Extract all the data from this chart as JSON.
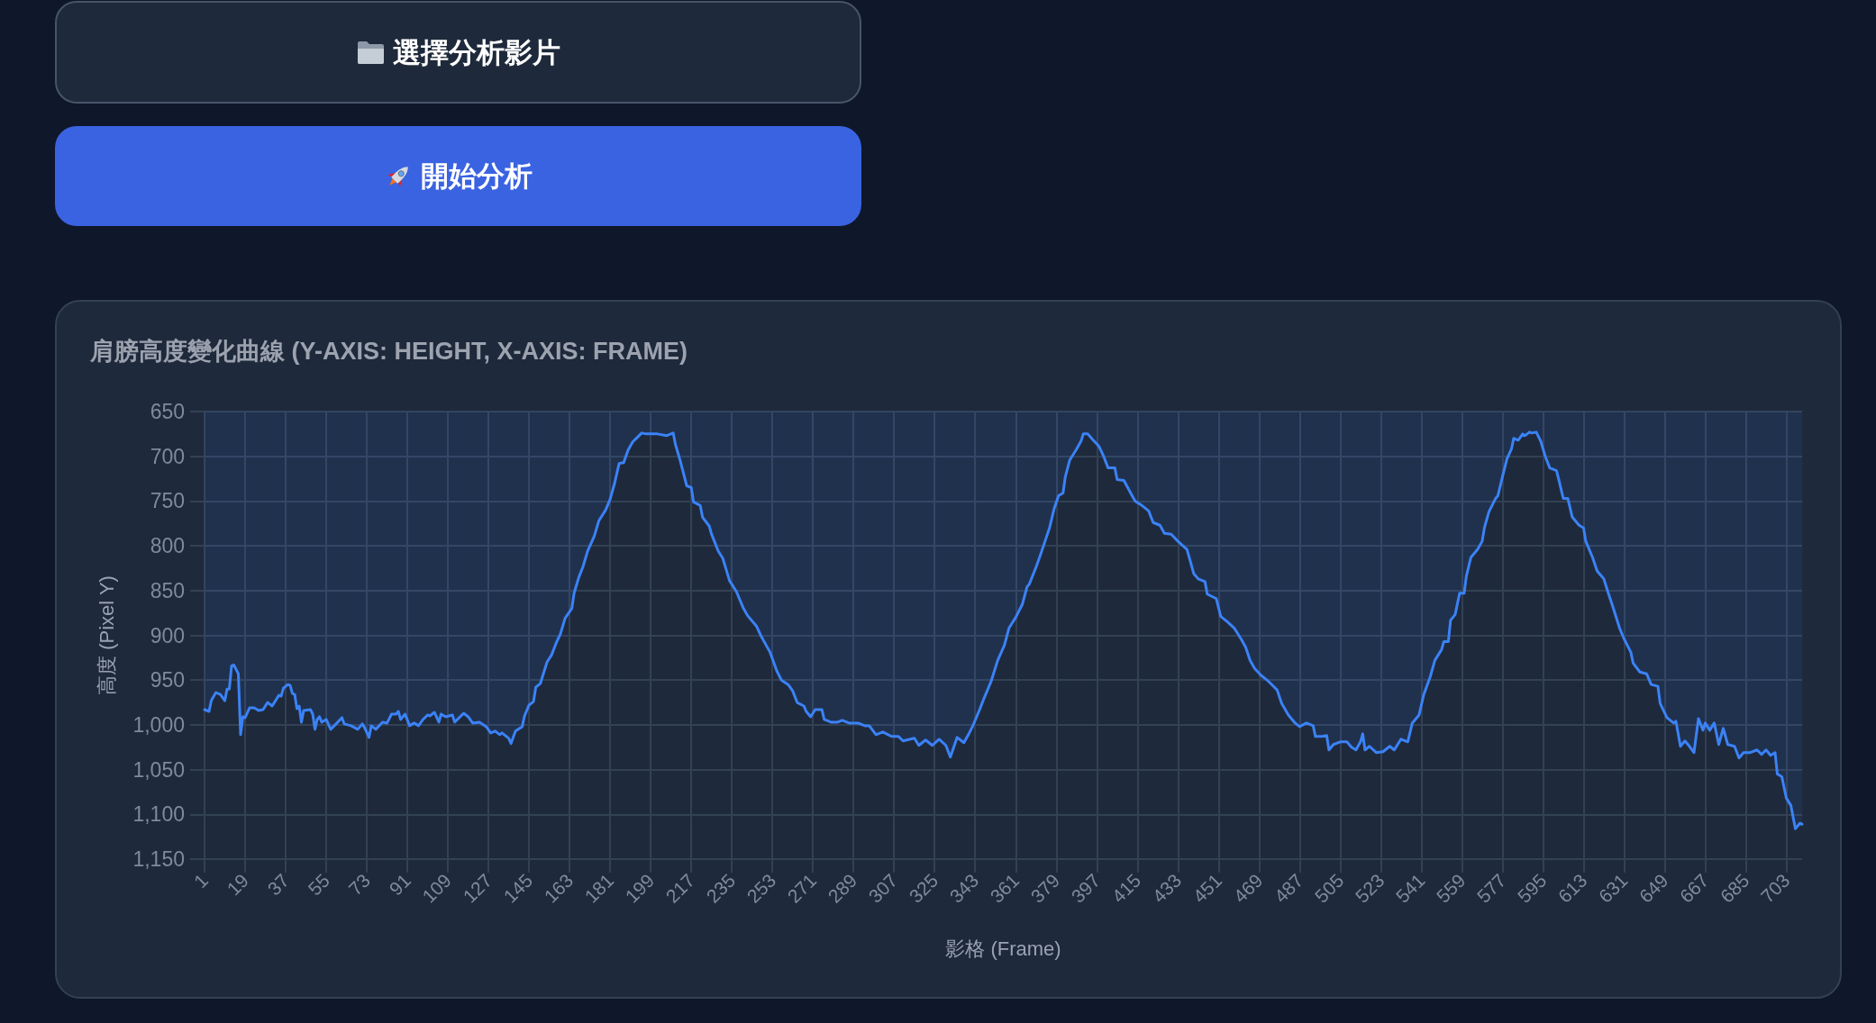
{
  "chart_data": {
    "type": "area",
    "title": "肩膀高度變化曲線 (Y-AXIS: HEIGHT, X-AXIS: FRAME)",
    "xlabel": "影格 (Frame)",
    "ylabel": "高度 (Pixel Y)",
    "annotations": [
      "選擇分析影片",
      "開始分析"
    ],
    "color": "#3b82f6",
    "grid": true,
    "xlim": [
      1,
      710
    ],
    "xticks": [
      1,
      19,
      37,
      55,
      73,
      91,
      109,
      127,
      145,
      163,
      181,
      199,
      217,
      235,
      253,
      271,
      289,
      307,
      325,
      343,
      361,
      379,
      397,
      415,
      433,
      451,
      469,
      487,
      505,
      523,
      541,
      559,
      577,
      595,
      613,
      631,
      649,
      667,
      685,
      703
    ],
    "ylim": [
      1150,
      650
    ],
    "yticks": [
      650,
      700,
      750,
      800,
      850,
      900,
      950,
      {
        "value": 1000,
        "label": "1,000"
      },
      {
        "value": 1050,
        "label": "1,050"
      },
      {
        "value": 1100,
        "label": "1,100"
      },
      {
        "value": 1150,
        "label": "1,150"
      }
    ],
    "x": [
      1,
      3,
      4,
      6,
      8,
      10,
      11,
      12,
      13,
      14,
      16,
      17,
      18,
      19,
      21,
      23,
      25,
      27,
      29,
      31,
      34,
      35,
      36,
      38,
      39,
      40,
      41,
      42,
      43,
      44,
      45,
      48,
      49,
      50,
      51,
      52,
      53,
      55,
      57,
      59,
      62,
      63,
      66,
      69,
      71,
      72,
      74,
      75,
      77,
      80,
      82,
      84,
      86,
      87,
      88,
      90,
      92,
      94,
      96,
      98,
      100,
      101,
      103,
      105,
      106,
      108,
      111,
      112,
      116,
      118,
      120,
      123,
      126,
      128,
      130,
      132,
      133,
      136,
      137,
      139,
      142,
      143,
      145,
      147,
      148,
      150,
      152,
      153,
      155,
      157,
      159,
      161,
      164,
      165,
      167,
      169,
      171,
      174,
      176,
      179,
      181,
      183,
      185,
      187,
      189,
      191,
      193,
      195,
      197,
      199,
      202,
      206,
      209,
      210,
      212,
      215,
      217,
      218,
      221,
      222,
      225,
      226,
      229,
      231,
      234,
      237,
      240,
      242,
      246,
      248,
      252,
      255,
      257,
      260,
      262,
      264,
      267,
      268,
      270,
      272,
      275,
      276,
      279,
      282,
      284,
      287,
      291,
      294,
      296,
      299,
      302,
      306,
      309,
      311,
      316,
      318,
      321,
      324,
      327,
      330,
      332,
      335,
      338,
      340,
      342,
      345,
      347,
      350,
      353,
      356,
      358,
      361,
      364,
      366,
      367,
      370,
      372,
      374,
      376,
      378,
      380,
      382,
      383,
      385,
      388,
      390,
      391,
      393,
      395,
      398,
      400,
      402,
      405,
      406,
      409,
      412,
      414,
      417,
      420,
      422,
      425,
      427,
      430,
      433,
      437,
      438,
      440,
      442,
      445,
      446,
      450,
      452,
      455,
      458,
      461,
      463,
      465,
      467,
      470,
      473,
      477,
      479,
      482,
      485,
      487,
      490,
      493,
      494,
      497,
      499,
      500,
      502,
      505,
      508,
      510,
      512,
      514,
      515,
      516,
      518,
      521,
      524,
      527,
      529,
      532,
      535,
      537,
      540,
      542,
      545,
      547,
      550,
      551,
      553,
      554,
      556,
      558,
      560,
      561,
      563,
      566,
      568,
      569,
      571,
      574,
      575,
      577,
      579,
      581,
      582,
      584,
      586,
      587,
      589,
      590,
      592,
      594,
      596,
      598,
      601,
      602,
      604,
      606,
      608,
      611,
      613,
      614,
      617,
      619,
      622,
      624,
      626,
      629,
      631,
      634,
      635,
      638,
      641,
      643,
      646,
      647,
      650,
      653,
      654,
      656,
      658,
      660,
      662,
      664,
      666,
      667,
      669,
      671,
      673,
      675,
      677,
      680,
      682,
      684,
      687,
      690,
      692,
      694,
      696,
      698,
      699,
      701,
      703,
      705,
      707,
      709,
      710
    ],
    "values": [
      983,
      985,
      973,
      964,
      966,
      973,
      960,
      960,
      934,
      933,
      943,
      1011,
      991,
      992,
      981,
      981,
      984,
      983,
      975,
      979,
      967,
      968,
      959,
      955,
      956,
      965,
      966,
      982,
      979,
      997,
      984,
      983,
      988,
      1005,
      994,
      991,
      997,
      994,
      1005,
      1000,
      992,
      999,
      1001,
      1005,
      999,
      1003,
      1014,
      1001,
      1005,
      997,
      998,
      988,
      988,
      985,
      994,
      988,
      1001,
      998,
      1001,
      994,
      989,
      990,
      986,
      997,
      988,
      991,
      989,
      997,
      987,
      991,
      998,
      997,
      1002,
      1009,
      1007,
      1011,
      1009,
      1015,
      1021,
      1007,
      1002,
      990,
      978,
      974,
      958,
      954,
      938,
      930,
      922,
      909,
      898,
      881,
      870,
      853,
      836,
      823,
      806,
      789,
      772,
      760,
      748,
      730,
      708,
      707,
      693,
      684,
      679,
      674,
      675,
      675,
      675,
      677,
      674,
      687,
      704,
      733,
      735,
      751,
      755,
      768,
      778,
      787,
      806,
      814,
      839,
      851,
      869,
      878,
      890,
      901,
      919,
      940,
      950,
      955,
      962,
      975,
      979,
      985,
      991,
      983,
      983,
      994,
      997,
      997,
      995,
      998,
      998,
      1001,
      1001,
      1011,
      1008,
      1013,
      1013,
      1018,
      1015,
      1023,
      1017,
      1023,
      1016,
      1023,
      1036,
      1014,
      1020,
      1011,
      1001,
      983,
      970,
      952,
      928,
      911,
      892,
      880,
      865,
      846,
      843,
      824,
      810,
      795,
      780,
      759,
      744,
      741,
      723,
      704,
      692,
      683,
      675,
      675,
      681,
      689,
      700,
      713,
      713,
      726,
      727,
      741,
      750,
      755,
      761,
      774,
      777,
      786,
      787,
      795,
      804,
      813,
      831,
      837,
      840,
      854,
      859,
      879,
      885,
      892,
      904,
      913,
      928,
      937,
      945,
      951,
      961,
      976,
      989,
      998,
      1002,
      998,
      1001,
      1013,
      1013,
      1012,
      1028,
      1022,
      1019,
      1019,
      1025,
      1028,
      1019,
      1010,
      1028,
      1024,
      1031,
      1030,
      1024,
      1028,
      1016,
      1019,
      998,
      989,
      967,
      946,
      928,
      916,
      907,
      907,
      883,
      877,
      853,
      853,
      834,
      813,
      804,
      795,
      780,
      762,
      747,
      744,
      723,
      703,
      692,
      680,
      682,
      675,
      677,
      673,
      674,
      673,
      683,
      700,
      713,
      716,
      726,
      747,
      747,
      768,
      777,
      780,
      795,
      813,
      828,
      837,
      853,
      868,
      892,
      904,
      919,
      931,
      941,
      943,
      955,
      957,
      976,
      992,
      998,
      996,
      1024,
      1018,
      1024,
      1031,
      993,
      1006,
      998,
      1006,
      998,
      1022,
      1004,
      1022,
      1024,
      1037,
      1031,
      1031,
      1028,
      1033,
      1028,
      1034,
      1031,
      1055,
      1058,
      1082,
      1090,
      1116,
      1110,
      1111
    ]
  }
}
